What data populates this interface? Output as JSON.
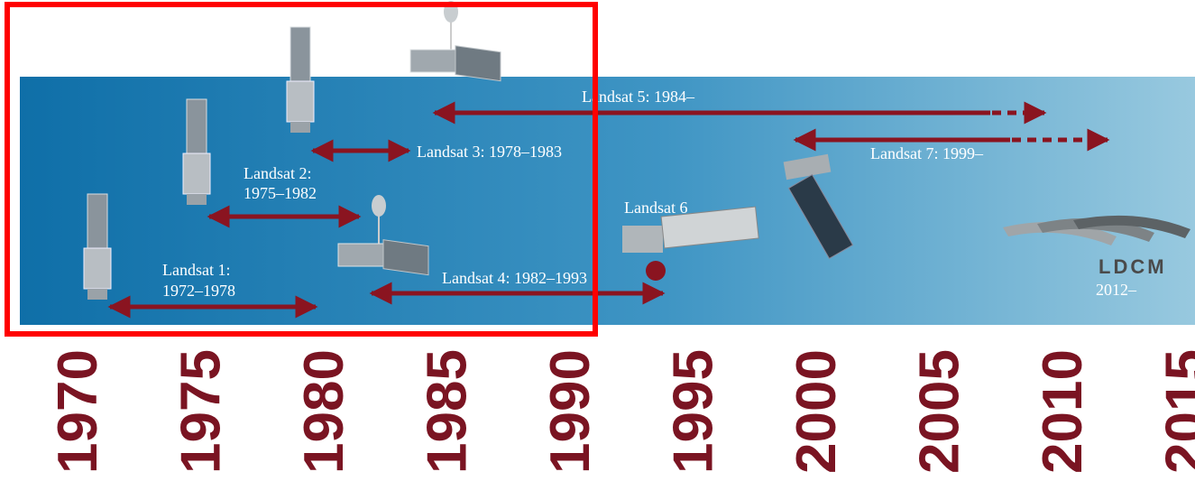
{
  "missions": [
    {
      "label": "Landsat 1:",
      "years": "1972–1978"
    },
    {
      "label": "Landsat 2:",
      "years": "1975–1982"
    },
    {
      "label": "Landsat 3: 1978–1983"
    },
    {
      "label": "Landsat 4: 1982–1993"
    },
    {
      "label": "Landsat 5: 1984–"
    },
    {
      "label": "Landsat 6"
    },
    {
      "label": "Landsat 7: 1999–"
    }
  ],
  "ldcm": {
    "label": "LDCM",
    "years": "2012–"
  },
  "axis": {
    "years": [
      "1970",
      "1975",
      "1980",
      "1985",
      "1990",
      "1995",
      "2000",
      "2005",
      "2010",
      "2015"
    ]
  }
}
